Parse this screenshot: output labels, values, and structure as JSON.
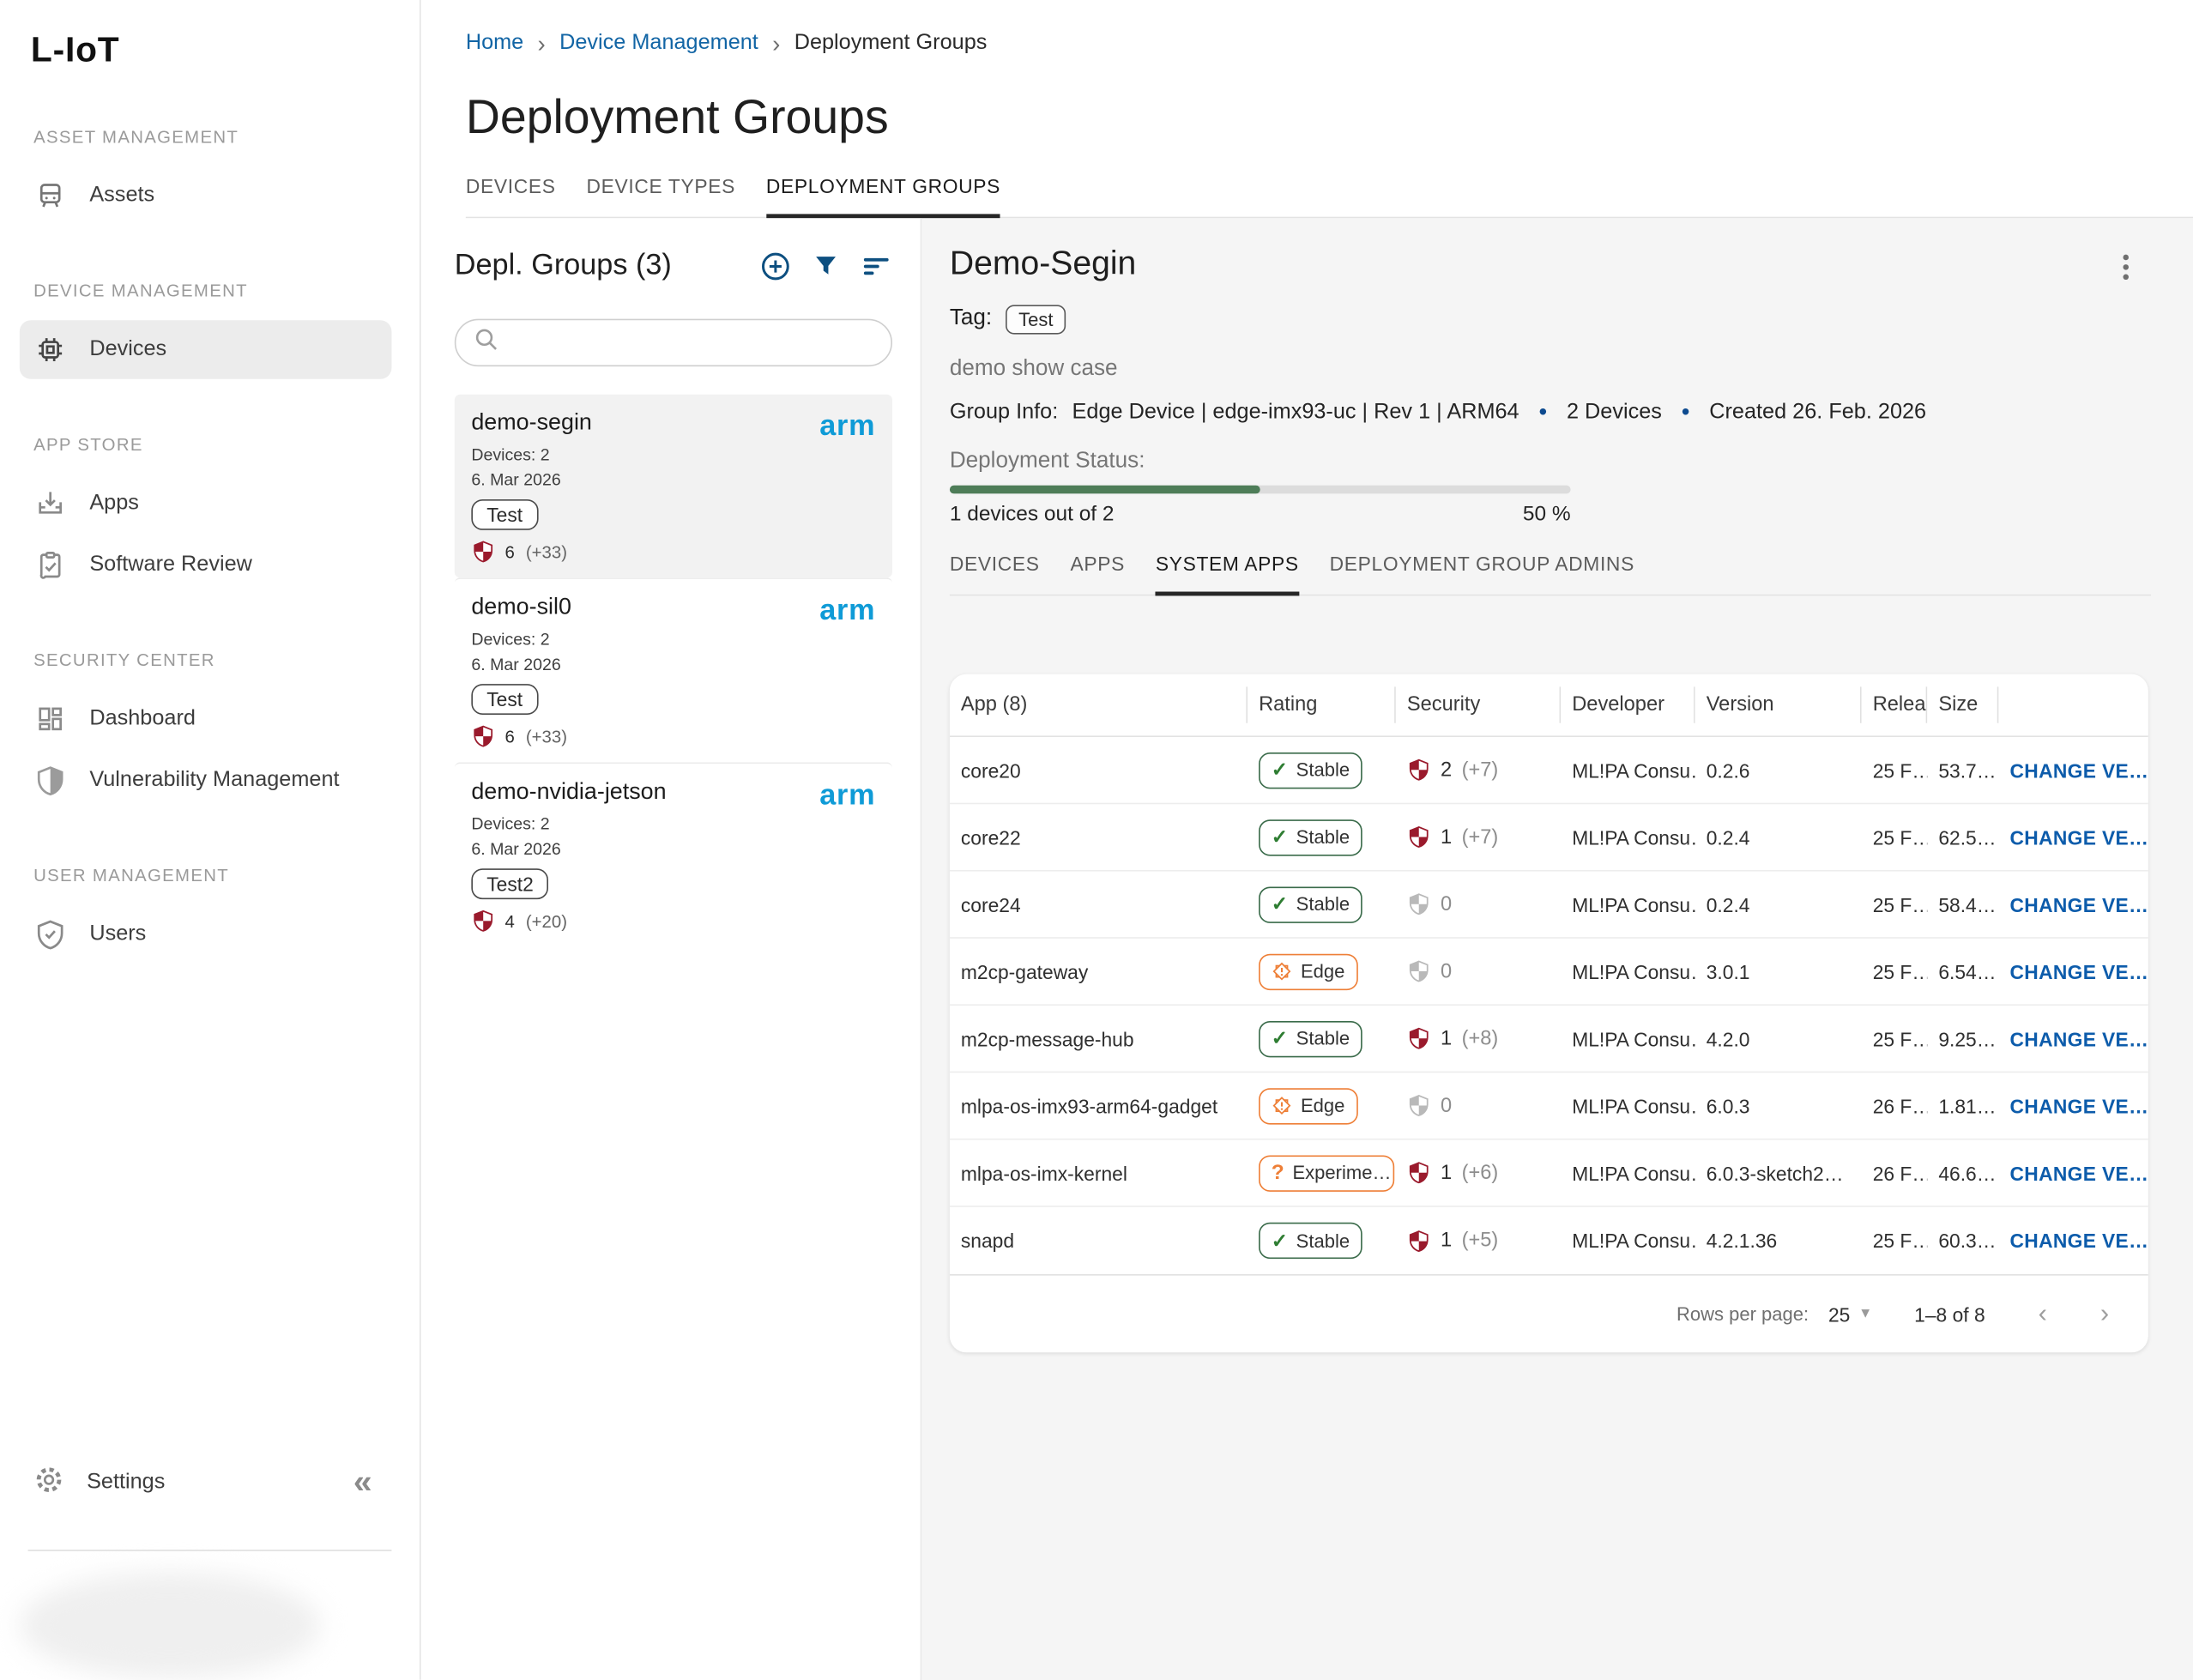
{
  "brand": {
    "logo": "L-IoT"
  },
  "colors": {
    "accent_blue": "#0d4f80",
    "breadcrumb_link": "#1265a5",
    "action_link": "#0d5cab",
    "arm_blue": "#0f9bd7",
    "shield_red": "#9a1a2c",
    "shield_gray": "#b9b9b9",
    "stable_green": "#3a6b4a",
    "warning_orange": "#ee7f37",
    "progress_green": "#4e7d58",
    "panel_bg": "#f5f5f5"
  },
  "sidebar": {
    "sections": [
      {
        "label": "ASSET MANAGEMENT",
        "items": [
          {
            "label": "Assets",
            "icon": "tram-icon"
          }
        ]
      },
      {
        "label": "DEVICE MANAGEMENT",
        "items": [
          {
            "label": "Devices",
            "icon": "chip-icon",
            "active": true
          }
        ]
      },
      {
        "label": "APP STORE",
        "items": [
          {
            "label": "Apps",
            "icon": "app-install-icon"
          },
          {
            "label": "Software Review",
            "icon": "clipboard-check-icon"
          }
        ]
      },
      {
        "label": "SECURITY CENTER",
        "items": [
          {
            "label": "Dashboard",
            "icon": "dashboard-icon"
          },
          {
            "label": "Vulnerability Management",
            "icon": "shield-half-icon"
          }
        ]
      },
      {
        "label": "USER MANAGEMENT",
        "items": [
          {
            "label": "Users",
            "icon": "verified-user-icon"
          }
        ]
      }
    ],
    "settings_label": "Settings",
    "collapse_icon": "double-chevron-left",
    "collapse_glyph": "«"
  },
  "breadcrumb": {
    "home": "Home",
    "level1": "Device Management",
    "current": "Deployment Groups"
  },
  "page_title": "Deployment Groups",
  "main_tabs": [
    {
      "label": "DEVICES"
    },
    {
      "label": "DEVICE TYPES"
    },
    {
      "label": "DEPLOYMENT GROUPS",
      "active": true
    }
  ],
  "groups_panel": {
    "title": "Depl. Groups (3)",
    "search_placeholder": "",
    "arm_logo": "arm",
    "items": [
      {
        "name": "demo-segin",
        "devices": "Devices: 2",
        "date": "6. Mar 2026",
        "tag": "Test",
        "vuln_count": "6",
        "vuln_extra": "(+33)",
        "selected": true
      },
      {
        "name": "demo-sil0",
        "devices": "Devices: 2",
        "date": "6. Mar 2026",
        "tag": "Test",
        "vuln_count": "6",
        "vuln_extra": "(+33)",
        "selected": false
      },
      {
        "name": "demo-nvidia-jetson",
        "devices": "Devices: 2",
        "date": "6. Mar 2026",
        "tag": "Test2",
        "vuln_count": "4",
        "vuln_extra": "(+20)",
        "selected": false
      }
    ]
  },
  "detail": {
    "title": "Demo-Segin",
    "tag_label": "Tag:",
    "tag": "Test",
    "description": "demo show case",
    "group_info_label": "Group Info:",
    "group_info_value": "Edge Device | edge-imx93-uc | Rev 1 | ARM64",
    "group_info_devices": "2 Devices",
    "group_info_created": "Created 26. Feb. 2026",
    "deployment_status_label": "Deployment Status:",
    "progress_percent": 50,
    "progress_text": "1 devices out of 2",
    "progress_value_text": "50 %",
    "tabs": [
      {
        "label": "DEVICES"
      },
      {
        "label": "APPS"
      },
      {
        "label": "SYSTEM APPS",
        "active": true
      },
      {
        "label": "DEPLOYMENT GROUP ADMINS"
      }
    ]
  },
  "table": {
    "columns": {
      "app": "App (8)",
      "rating": "Rating",
      "security": "Security",
      "developer": "Developer",
      "version": "Version",
      "release": "Relea…",
      "size": "Size",
      "actions": ""
    },
    "rows": [
      {
        "app": "core20",
        "rating": "Stable",
        "rating_type": "stable",
        "sec_count": "2",
        "sec_extra": "(+7)",
        "sec_level": "red",
        "developer": "ML!PA Consu…",
        "version": "0.2.6",
        "release": "25 F…",
        "size": "53.7…",
        "action": "CHANGE VE…"
      },
      {
        "app": "core22",
        "rating": "Stable",
        "rating_type": "stable",
        "sec_count": "1",
        "sec_extra": "(+7)",
        "sec_level": "red",
        "developer": "ML!PA Consu…",
        "version": "0.2.4",
        "release": "25 F…",
        "size": "62.5…",
        "action": "CHANGE VE…"
      },
      {
        "app": "core24",
        "rating": "Stable",
        "rating_type": "stable",
        "sec_count": "0",
        "sec_level": "gray",
        "developer": "ML!PA Consu…",
        "version": "0.2.4",
        "release": "25 F…",
        "size": "58.4…",
        "action": "CHANGE VE…"
      },
      {
        "app": "m2cp-gateway",
        "rating": "Edge",
        "rating_type": "edge",
        "sec_count": "0",
        "sec_level": "gray",
        "developer": "ML!PA Consu…",
        "version": "3.0.1",
        "release": "25 F…",
        "size": "6.54…",
        "action": "CHANGE VE…"
      },
      {
        "app": "m2cp-message-hub",
        "rating": "Stable",
        "rating_type": "stable",
        "sec_count": "1",
        "sec_extra": "(+8)",
        "sec_level": "red",
        "developer": "ML!PA Consu…",
        "version": "4.2.0",
        "release": "25 F…",
        "size": "9.25…",
        "action": "CHANGE VE…"
      },
      {
        "app": "mlpa-os-imx93-arm64-gadget",
        "rating": "Edge",
        "rating_type": "edge",
        "sec_count": "0",
        "sec_level": "gray",
        "developer": "ML!PA Consu…",
        "version": "6.0.3",
        "release": "26 F…",
        "size": "1.81…",
        "action": "CHANGE VE…"
      },
      {
        "app": "mlpa-os-imx-kernel",
        "rating": "Experime…",
        "rating_type": "experimental",
        "sec_count": "1",
        "sec_extra": "(+6)",
        "sec_level": "red",
        "developer": "ML!PA Consu…",
        "version": "6.0.3-sketch2…",
        "release": "26 F…",
        "size": "46.6…",
        "action": "CHANGE VE…"
      },
      {
        "app": "snapd",
        "rating": "Stable",
        "rating_type": "stable",
        "sec_count": "1",
        "sec_extra": "(+5)",
        "sec_level": "red",
        "developer": "ML!PA Consu…",
        "version": "4.2.1.36",
        "release": "25 F…",
        "size": "60.3…",
        "action": "CHANGE VE…"
      }
    ],
    "pagination": {
      "rows_per_page_label": "Rows per page:",
      "rows_per_page": "25",
      "range": "1–8 of 8"
    }
  }
}
